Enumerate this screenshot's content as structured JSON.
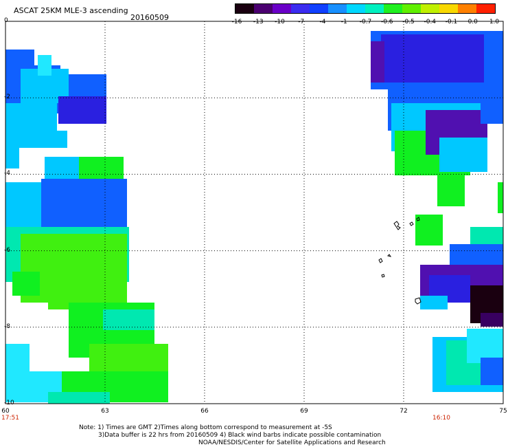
{
  "header": {
    "title": "ASCAT 25KM MLE-3 ascending",
    "date": "20160509"
  },
  "colorbar": {
    "ticks": [
      "-16",
      "-13",
      "-10",
      "-7",
      "-4",
      "-1",
      "-0.7",
      "-0.6",
      "-0.5",
      "-0.4",
      "-0.1",
      "0.0",
      "1.0"
    ],
    "colors": [
      "#1a0010",
      "#4b0070",
      "#6a00c8",
      "#3b2cf0",
      "#1040ff",
      "#1890ff",
      "#00d8ff",
      "#00f0c0",
      "#20f020",
      "#60f000",
      "#c0f000",
      "#f8d800",
      "#ff8000",
      "#ff2000"
    ]
  },
  "axes": {
    "y_labels": [
      "0",
      "-2",
      "-4",
      "-6",
      "-8",
      "-10"
    ],
    "x_labels": [
      "60",
      "63",
      "66",
      "69",
      "72",
      "75"
    ],
    "time_start": "17:51",
    "time_end": "16:10"
  },
  "notes": {
    "line1": "Note: 1) Times are GMT 2)Times along bottom correspond to measurement at -5S",
    "line2": "3)Data buffer is 22 hrs from 20160509 4) Black wind barbs indicate possible contamination",
    "line3": "NOAA/NESDIS/Center for Satellite Applications and Research"
  },
  "map_data": {
    "lon_range": [
      60,
      75
    ],
    "lat_range": [
      -10,
      0
    ],
    "palette": {
      "blue": "#1060ff",
      "deep_blue": "#2a20e0",
      "cyan": "#00c8ff",
      "light_cyan": "#20e8ff",
      "teal": "#00e8b0",
      "green": "#10f020",
      "lime": "#40f010",
      "purple": "#5010b0",
      "dark_purple": "#380060",
      "black_purple": "#1a0010"
    }
  }
}
